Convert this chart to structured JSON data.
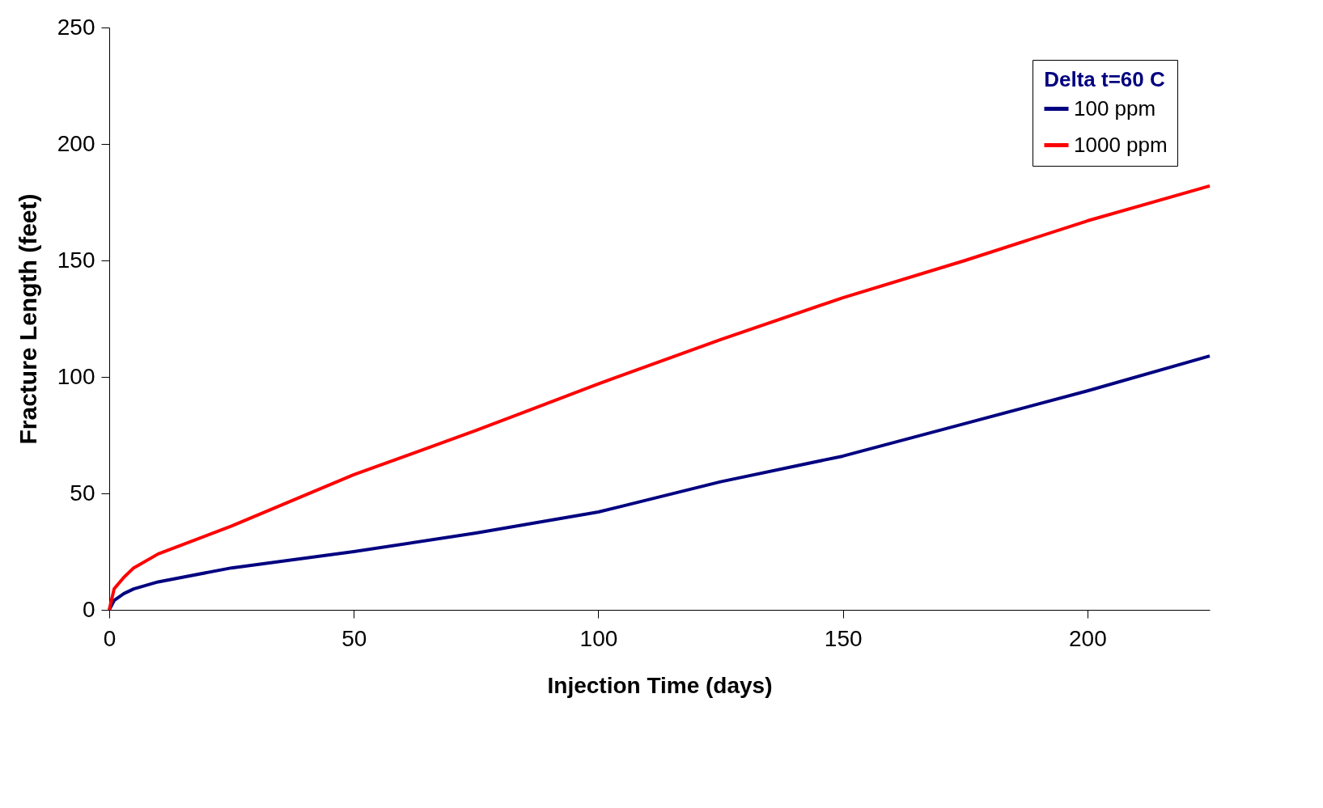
{
  "chart_data": {
    "type": "line",
    "xlabel": "Injection Time (days)",
    "ylabel": "Fracture Length (feet)",
    "legend_title": "Delta t=60 C",
    "legend": "top right",
    "grid": false,
    "marker": "none",
    "line_style": "solid",
    "xlim": [
      0,
      225
    ],
    "xticks": [
      0,
      50,
      100,
      150,
      200
    ],
    "ylim": [
      0,
      250
    ],
    "yticks": [
      0,
      50,
      100,
      150,
      200,
      250
    ],
    "series": [
      {
        "name": "100 ppm",
        "color": "#000080",
        "x": [
          0,
          1,
          3,
          5,
          10,
          25,
          50,
          75,
          100,
          125,
          150,
          175,
          200,
          225
        ],
        "values": [
          0,
          4,
          7,
          9,
          12,
          18,
          25,
          33,
          42,
          55,
          66,
          80,
          94,
          109
        ]
      },
      {
        "name": "1000 ppm",
        "color": "#ff0000",
        "x": [
          0,
          1,
          3,
          5,
          10,
          25,
          50,
          75,
          100,
          125,
          150,
          175,
          200,
          225
        ],
        "values": [
          0,
          9,
          14,
          18,
          24,
          36,
          58,
          77,
          97,
          116,
          134,
          150,
          167,
          182
        ]
      }
    ]
  }
}
